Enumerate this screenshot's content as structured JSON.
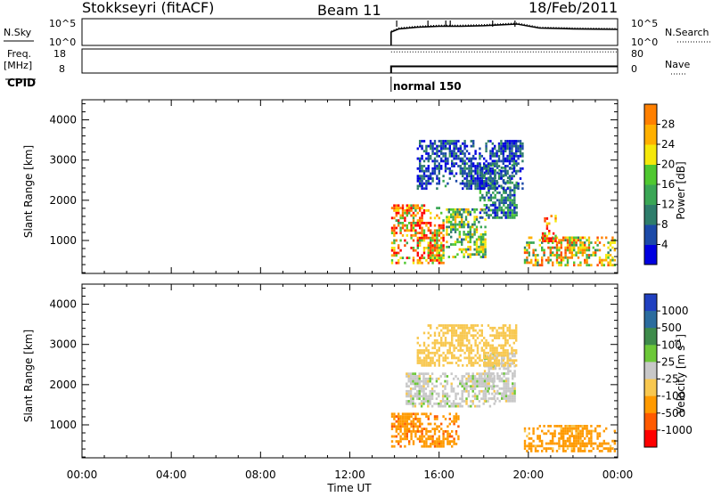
{
  "header": {
    "station": "Stokkseyri (fitACF)",
    "beam": "Beam 11",
    "date": "18/Feb/2011"
  },
  "noise_panel": {
    "left_label": "N.Sky",
    "left_ticks": [
      "10^5",
      "10^0"
    ],
    "right_ticks": [
      "10^5",
      "10^0"
    ],
    "right_label": "N.Search"
  },
  "freq_panel": {
    "left_label_1": "Freq.",
    "left_label_2": "[MHz]",
    "left_ticks": [
      "18",
      "8"
    ],
    "right_ticks": [
      "80",
      "0"
    ],
    "right_label": "Nave"
  },
  "cpid": {
    "label": "CPID",
    "mode": "normal 150"
  },
  "x_axis": {
    "title": "Time UT",
    "ticks": [
      "00:00",
      "04:00",
      "08:00",
      "12:00",
      "16:00",
      "20:00",
      "00:00"
    ]
  },
  "chart_data": [
    {
      "type": "heatmap",
      "name": "power",
      "ylabel": "Slant Range [km]",
      "x_range_hours": [
        0,
        24
      ],
      "ylim_km": [
        180,
        4500
      ],
      "y_ticks": [
        "1000",
        "2000",
        "3000",
        "4000"
      ],
      "colorbar_title": "Power [dB]",
      "colorbar_ticks": [
        "4",
        "8",
        "12",
        "16",
        "20",
        "24",
        "28"
      ],
      "colorbar_range": [
        0,
        32
      ],
      "colors": [
        "#0000e0",
        "#1c4aa8",
        "#2e7d6b",
        "#3aa655",
        "#4fc830",
        "#f5e80a",
        "#ffb000",
        "#ff8000",
        "#ff4a00",
        "#ff0000"
      ],
      "regions": [
        {
          "t": [
            13.85,
            16.3
          ],
          "r": [
            400,
            1900
          ],
          "value": 22
        },
        {
          "t": [
            16.3,
            18.2
          ],
          "r": [
            500,
            1800
          ],
          "value": 14
        },
        {
          "t": [
            17.8,
            19.6
          ],
          "r": [
            1500,
            2900
          ],
          "value": 8
        },
        {
          "t": [
            19.8,
            24.0
          ],
          "r": [
            300,
            1100
          ],
          "value": 18
        },
        {
          "t": [
            20.6,
            21.3
          ],
          "r": [
            900,
            1700
          ],
          "value": 24
        },
        {
          "t": [
            15.0,
            19.8
          ],
          "r": [
            2200,
            3500
          ],
          "value": 5
        }
      ]
    },
    {
      "type": "heatmap",
      "name": "velocity",
      "ylabel": "Slant Range [km]",
      "x_range_hours": [
        0,
        24
      ],
      "ylim_km": [
        180,
        4500
      ],
      "y_ticks": [
        "1000",
        "2000",
        "3000",
        "4000"
      ],
      "colorbar_title": "Velocity [m s",
      "colorbar_title_sup": "-1",
      "colorbar_title_end": "]",
      "colorbar_ticks": [
        "1000",
        "500",
        "100",
        "25",
        "-25",
        "-100",
        "-500",
        "-1000"
      ],
      "colors": [
        "#2040c0",
        "#2b6c9e",
        "#3e8b4b",
        "#6cc838",
        "#c8c8c8",
        "#f8c850",
        "#ff9a00",
        "#ff5a00",
        "#ff0000"
      ],
      "regions": [
        {
          "t": [
            13.85,
            17.0
          ],
          "r": [
            400,
            1300
          ],
          "value": -400
        },
        {
          "t": [
            14.5,
            18.6
          ],
          "r": [
            1400,
            2300
          ],
          "value": 0
        },
        {
          "t": [
            18.0,
            19.5
          ],
          "r": [
            1500,
            2800
          ],
          "value": 0
        },
        {
          "t": [
            19.8,
            24.0
          ],
          "r": [
            300,
            1000
          ],
          "value": -150
        },
        {
          "t": [
            15.0,
            19.6
          ],
          "r": [
            2400,
            3500
          ],
          "value": -60
        }
      ]
    }
  ],
  "timeseries": {
    "noise_levels": [
      [
        13.85,
        0.5
      ],
      [
        14.2,
        0.62
      ],
      [
        15.0,
        0.68
      ],
      [
        16.0,
        0.72
      ],
      [
        17.0,
        0.72
      ],
      [
        18.0,
        0.74
      ],
      [
        19.0,
        0.78
      ],
      [
        19.5,
        0.8
      ],
      [
        20.5,
        0.65
      ],
      [
        22.0,
        0.62
      ],
      [
        24.0,
        0.6
      ]
    ],
    "noise_spikes": [
      14.1,
      15.5,
      16.3,
      16.5,
      18.4,
      19.4
    ],
    "freq_level": 0.28,
    "nave_level": 0.88,
    "start_hour": 13.85
  }
}
